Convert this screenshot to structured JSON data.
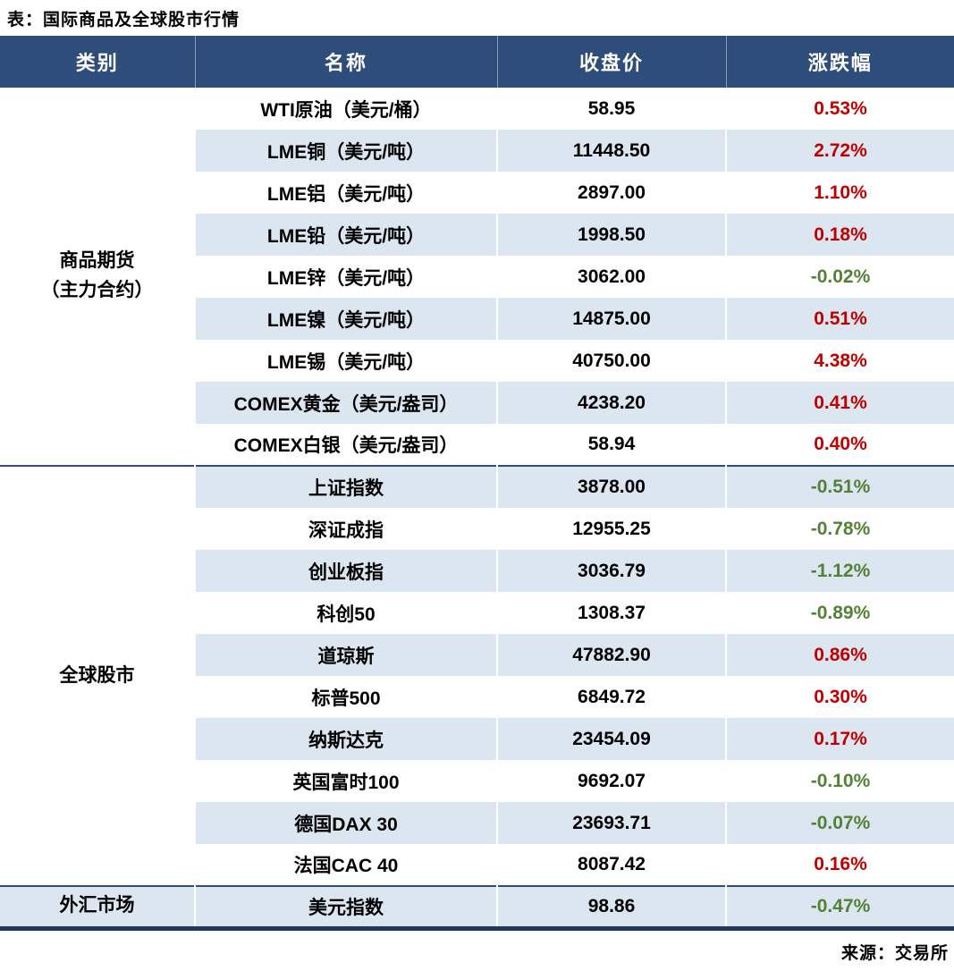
{
  "title": "表：国际商品及全球股市行情",
  "source": "来源：交易所",
  "colors": {
    "header_bg": "#2E4D7B",
    "header_text": "#FFFFFF",
    "row_bg": "#FFFFFF",
    "row_alt_bg": "#DCE6F1",
    "positive": "#C00000",
    "negative": "#538135",
    "divider": "#2E4D7B",
    "bottom_border": "#1F3A5F"
  },
  "chart_data": {
    "type": "table",
    "title": "表：国际商品及全球股市行情",
    "columns": [
      "类别",
      "名称",
      "收盘价",
      "涨跌幅"
    ],
    "groups": [
      {
        "category": "商品期货\n（主力合约）",
        "rows": [
          {
            "name": "WTI原油（美元/桶）",
            "close": "58.95",
            "change": "0.53%"
          },
          {
            "name": "LME铜（美元/吨）",
            "close": "11448.50",
            "change": "2.72%"
          },
          {
            "name": "LME铝（美元/吨）",
            "close": "2897.00",
            "change": "1.10%"
          },
          {
            "name": "LME铅（美元/吨）",
            "close": "1998.50",
            "change": "0.18%"
          },
          {
            "name": "LME锌（美元/吨）",
            "close": "3062.00",
            "change": "-0.02%"
          },
          {
            "name": "LME镍（美元/吨）",
            "close": "14875.00",
            "change": "0.51%"
          },
          {
            "name": "LME锡（美元/吨）",
            "close": "40750.00",
            "change": "4.38%"
          },
          {
            "name": "COMEX黄金（美元/盎司）",
            "close": "4238.20",
            "change": "0.41%"
          },
          {
            "name": "COMEX白银（美元/盎司）",
            "close": "58.94",
            "change": "0.40%"
          }
        ]
      },
      {
        "category": "全球股市",
        "rows": [
          {
            "name": "上证指数",
            "close": "3878.00",
            "change": "-0.51%"
          },
          {
            "name": "深证成指",
            "close": "12955.25",
            "change": "-0.78%"
          },
          {
            "name": "创业板指",
            "close": "3036.79",
            "change": "-1.12%"
          },
          {
            "name": "科创50",
            "close": "1308.37",
            "change": "-0.89%"
          },
          {
            "name": "道琼斯",
            "close": "47882.90",
            "change": "0.86%"
          },
          {
            "name": "标普500",
            "close": "6849.72",
            "change": "0.30%"
          },
          {
            "name": "纳斯达克",
            "close": "23454.09",
            "change": "0.17%"
          },
          {
            "name": "英国富时100",
            "close": "9692.07",
            "change": "-0.10%"
          },
          {
            "name": "德国DAX 30",
            "close": "23693.71",
            "change": "-0.07%"
          },
          {
            "name": "法国CAC 40",
            "close": "8087.42",
            "change": "0.16%"
          }
        ]
      },
      {
        "category": "外汇市场",
        "rows": [
          {
            "name": "美元指数",
            "close": "98.86",
            "change": "-0.47%"
          }
        ]
      }
    ]
  }
}
